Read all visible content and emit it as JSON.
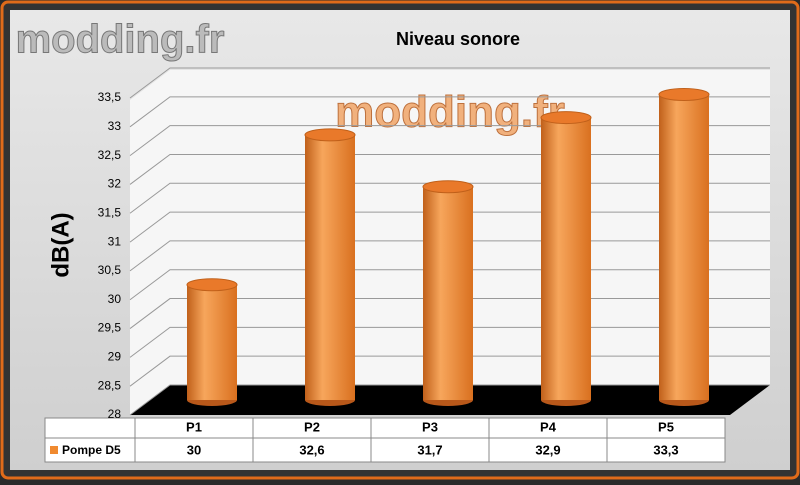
{
  "chart_data": {
    "type": "bar3d",
    "title": "Niveau sonore",
    "watermark": "modding.fr",
    "y_label": "dB(A)",
    "categories": [
      "P1",
      "P2",
      "P3",
      "P4",
      "P5"
    ],
    "series": [
      {
        "name": "Pompe D5",
        "color": "#f08a30",
        "values": [
          30,
          32.6,
          31.7,
          32.9,
          33.3
        ],
        "value_labels": [
          "30",
          "32,6",
          "31,7",
          "32,9",
          "33,3"
        ]
      }
    ],
    "ylim": [
      28,
      33.5
    ],
    "yticks": [
      28,
      {
        "value": 28.5,
        "label": "28,5"
      },
      29,
      {
        "value": 29.5,
        "label": "29,5"
      },
      30,
      {
        "value": 30.5,
        "label": "30,5"
      },
      31,
      {
        "value": 31.5,
        "label": "31,5"
      },
      32,
      {
        "value": 32.5,
        "label": "32,5"
      },
      33,
      {
        "value": 33.5,
        "label": "33,5"
      }
    ],
    "grid": true
  }
}
